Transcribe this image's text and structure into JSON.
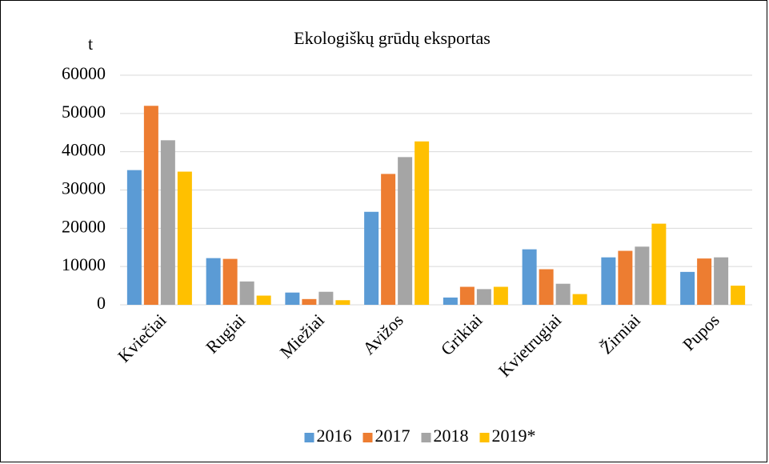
{
  "chart_data": {
    "type": "bar",
    "title": "Ekologiškų grūdų eksportas",
    "y_label": "t",
    "categories": [
      "Kviečiai",
      "Rugiai",
      "Miežiai",
      "Avižos",
      "Grikiai",
      "Kvietrugiai",
      "Žirniai",
      "Pupos"
    ],
    "series": [
      {
        "name": "2016",
        "color": "#5b9bd5",
        "values": [
          35200,
          12200,
          3200,
          24300,
          1900,
          14500,
          12400,
          8600
        ]
      },
      {
        "name": "2017",
        "color": "#ed7d31",
        "values": [
          52000,
          12000,
          1500,
          34200,
          4700,
          9300,
          14100,
          12100
        ]
      },
      {
        "name": "2018",
        "color": "#a5a5a5",
        "values": [
          43000,
          6100,
          3400,
          38600,
          4100,
          5500,
          15200,
          12400
        ]
      },
      {
        "name": "2019*",
        "color": "#ffc000",
        "values": [
          34800,
          2400,
          1200,
          42700,
          4700,
          2800,
          21200,
          5000
        ]
      }
    ],
    "ylim": [
      0,
      60000
    ],
    "yticks": [
      0,
      10000,
      20000,
      30000,
      40000,
      50000,
      60000
    ],
    "grid": true,
    "legend": "bottom"
  }
}
